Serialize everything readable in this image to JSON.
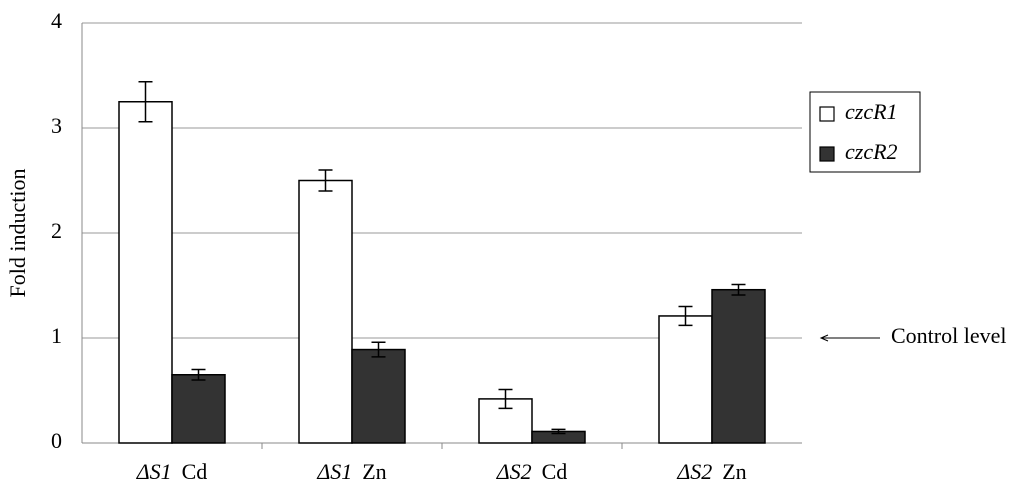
{
  "chart_data": {
    "type": "bar",
    "ylabel": "Fold induction",
    "categories": [
      "ΔS1 Cd",
      "ΔS1 Zn",
      "ΔS2 Cd",
      "ΔS2 Zn"
    ],
    "series": [
      {
        "name": "czcR1",
        "color": "#ffffff",
        "values": [
          3.25,
          2.5,
          0.42,
          1.21
        ],
        "errors": [
          0.19,
          0.1,
          0.09,
          0.09
        ]
      },
      {
        "name": "czcR2",
        "color": "#333333",
        "values": [
          0.65,
          0.89,
          0.11,
          1.46
        ],
        "errors": [
          0.05,
          0.07,
          0.02,
          0.05
        ]
      }
    ],
    "ylim": [
      0,
      4
    ],
    "yticks": [
      0,
      1,
      2,
      3,
      4
    ],
    "grid": true,
    "legend": "right",
    "annotations": [
      {
        "text": "Control level",
        "y": 1
      }
    ]
  }
}
